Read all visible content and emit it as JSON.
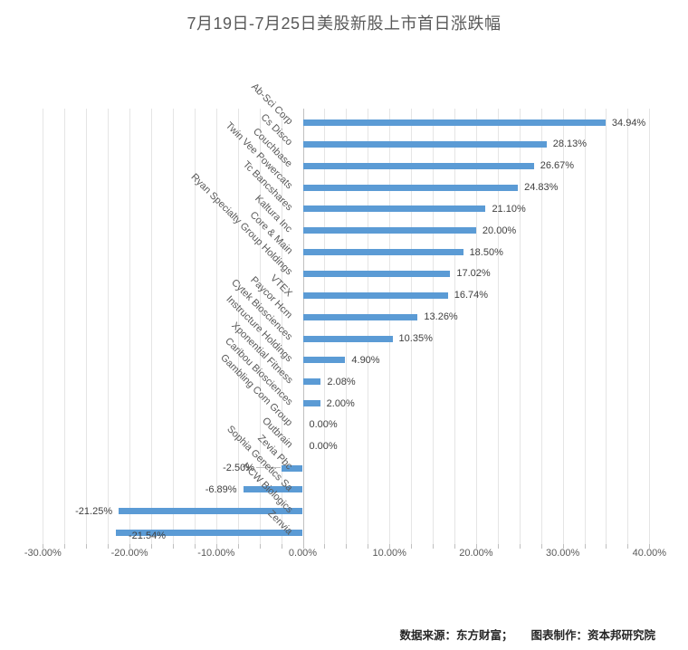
{
  "footer": {
    "source": "数据来源：东方财富；",
    "credit": "图表制作：资本邦研究院"
  },
  "chart_data": {
    "type": "bar",
    "orientation": "horizontal",
    "title": "7月19日-7月25日美股新股上市首日涨跌幅",
    "categories": [
      "Ab-Sci Corp",
      "Cs Disco",
      "Couchbase",
      "Twin Vee Powercats",
      "Tc Bancshares",
      "Kaltura Inc",
      "Core & Main",
      "Ryan Specialty Group Holdings",
      "VTEX",
      "Paycor Hcm",
      "Cytek Biosciences",
      "Instructure Holdings",
      "Xponential Fitness",
      "Caribou Biosciences",
      "Gambling Com Group",
      "Outbrain",
      "Zevia Pbc",
      "Sophia Genetics Sa",
      "HCW Biologics",
      "Zenvia"
    ],
    "values": [
      34.94,
      28.13,
      26.67,
      24.83,
      21.1,
      20.0,
      18.5,
      17.02,
      16.74,
      13.26,
      10.35,
      4.9,
      2.08,
      2.0,
      0.0,
      0.0,
      -2.5,
      -6.89,
      -21.25,
      -21.54
    ],
    "value_labels": [
      "34.94%",
      "28.13%",
      "26.67%",
      "24.83%",
      "21.10%",
      "20.00%",
      "18.50%",
      "17.02%",
      "16.74%",
      "13.26%",
      "10.35%",
      "4.90%",
      "2.08%",
      "2.00%",
      "0.00%",
      "0.00%",
      "-2.50%",
      "-6.89%",
      "-21.25%",
      "-21.54%"
    ],
    "xlabel": "",
    "ylabel": "",
    "xlim": [
      -30,
      40
    ],
    "x_tick_values": [
      -30,
      -20,
      -10,
      0,
      10,
      20,
      30,
      40
    ],
    "x_ticks": [
      "-30.00%",
      "-20.00%",
      "-10.00%",
      "0.00%",
      "10.00%",
      "20.00%",
      "30.00%",
      "40.00%"
    ],
    "minor_grid_step": 2.5,
    "grid": true,
    "legend": false,
    "colors": {
      "bar": "#5B9BD5",
      "gridline": "#E5E5E5",
      "zero_axis": "#C0C0C0",
      "tick": "#BFBFBF",
      "value_label": "#404040",
      "tick_label": "#595959",
      "title": "#595959"
    }
  }
}
